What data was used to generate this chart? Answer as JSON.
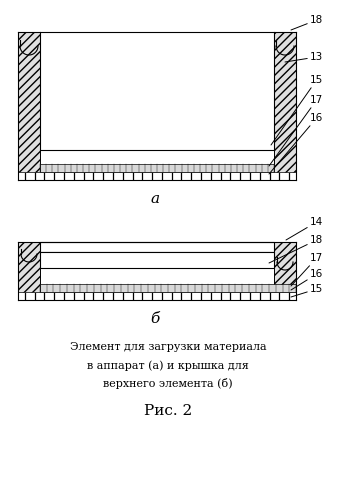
{
  "fig_width": 3.37,
  "fig_height": 5.0,
  "dpi": 100,
  "bg_color": "#ffffff",
  "line_color": "#000000",
  "caption_line1": "Элемент для загрузки материала",
  "caption_line2": "в аппарат (а) и крышка для",
  "caption_line3": "верхнего элемента (б)",
  "fig_label": "Рис. 2",
  "label_a": "а",
  "label_b": "б"
}
